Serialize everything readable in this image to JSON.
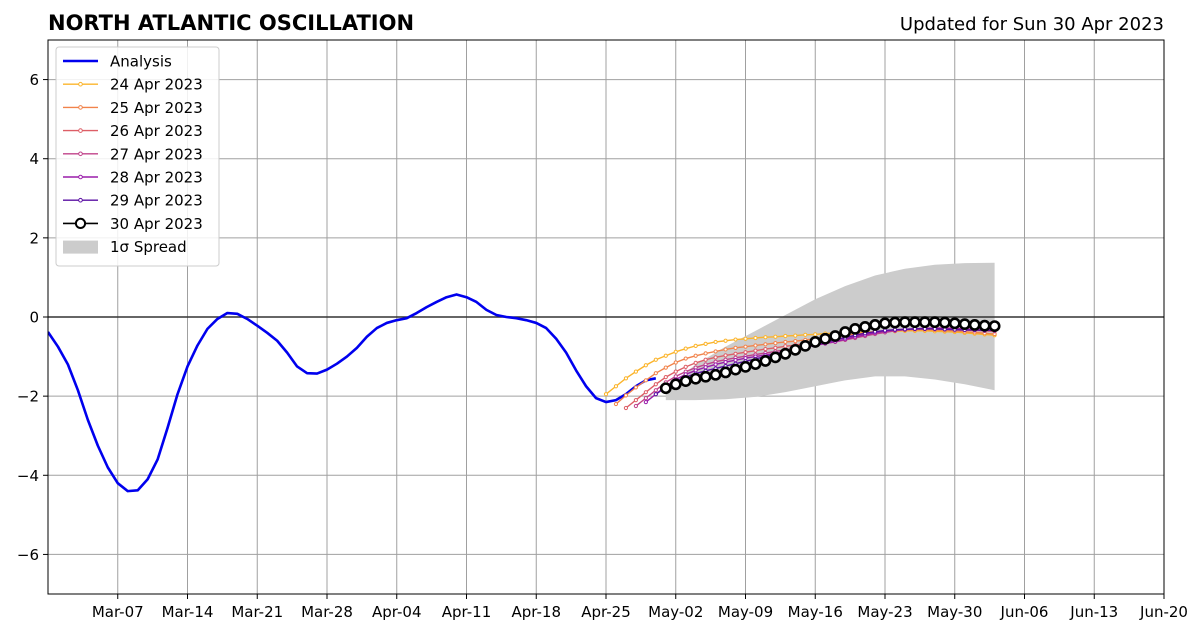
{
  "chart_data": {
    "type": "line",
    "title": "NORTH ATLANTIC OSCILLATION",
    "subtitle": "Updated for Sun 30 Apr 2023",
    "xlabel": "",
    "ylabel": "",
    "xlim": [
      "2023-02-28",
      "2023-06-20"
    ],
    "ylim": [
      -7,
      7
    ],
    "yticks": [
      -6,
      -4,
      -2,
      0,
      2,
      4,
      6
    ],
    "ytick_labels": [
      "−6",
      "−4",
      "−2",
      "0",
      "2",
      "4",
      "6"
    ],
    "xticks": [
      "2023-03-07",
      "2023-03-14",
      "2023-03-21",
      "2023-03-28",
      "2023-04-04",
      "2023-04-11",
      "2023-04-18",
      "2023-04-25",
      "2023-05-02",
      "2023-05-09",
      "2023-05-16",
      "2023-05-23",
      "2023-05-30",
      "2023-06-06",
      "2023-06-13",
      "2023-06-20"
    ],
    "xtick_labels": [
      "Mar-07",
      "Mar-14",
      "Mar-21",
      "Mar-28",
      "Apr-04",
      "Apr-11",
      "Apr-18",
      "Apr-25",
      "May-02",
      "May-09",
      "May-16",
      "May-23",
      "May-30",
      "Jun-06",
      "Jun-13",
      "Jun-20"
    ],
    "grid": true,
    "zero_line": true,
    "legend_position": "top-left",
    "legend": [
      {
        "label": "Analysis",
        "key": "analysis"
      },
      {
        "label": "24 Apr 2023",
        "key": "f0424"
      },
      {
        "label": "25 Apr 2023",
        "key": "f0425"
      },
      {
        "label": "26 Apr 2023",
        "key": "f0426"
      },
      {
        "label": "27 Apr 2023",
        "key": "f0427"
      },
      {
        "label": "28 Apr 2023",
        "key": "f0428"
      },
      {
        "label": "29 Apr 2023",
        "key": "f0429"
      },
      {
        "label": "30 Apr 2023",
        "key": "f0430"
      },
      {
        "label": "1σ Spread",
        "key": "spread"
      }
    ],
    "analysis": {
      "name": "Analysis",
      "color": "#0000ee",
      "x": [
        "2023-02-28",
        "2023-03-01",
        "2023-03-02",
        "2023-03-03",
        "2023-03-04",
        "2023-03-05",
        "2023-03-06",
        "2023-03-07",
        "2023-03-08",
        "2023-03-09",
        "2023-03-10",
        "2023-03-11",
        "2023-03-12",
        "2023-03-13",
        "2023-03-14",
        "2023-03-15",
        "2023-03-16",
        "2023-03-17",
        "2023-03-18",
        "2023-03-19",
        "2023-03-20",
        "2023-03-21",
        "2023-03-22",
        "2023-03-23",
        "2023-03-24",
        "2023-03-25",
        "2023-03-26",
        "2023-03-27",
        "2023-03-28",
        "2023-03-29",
        "2023-03-30",
        "2023-03-31",
        "2023-04-01",
        "2023-04-02",
        "2023-04-03",
        "2023-04-04",
        "2023-04-05",
        "2023-04-06",
        "2023-04-07",
        "2023-04-08",
        "2023-04-09",
        "2023-04-10",
        "2023-04-11",
        "2023-04-12",
        "2023-04-13",
        "2023-04-14",
        "2023-04-15",
        "2023-04-16",
        "2023-04-17",
        "2023-04-18",
        "2023-04-19",
        "2023-04-20",
        "2023-04-21",
        "2023-04-22",
        "2023-04-23",
        "2023-04-24",
        "2023-04-25",
        "2023-04-26",
        "2023-04-27",
        "2023-04-28",
        "2023-04-29",
        "2023-04-30"
      ],
      "y": [
        -0.38,
        -0.75,
        -1.2,
        -1.85,
        -2.6,
        -3.25,
        -3.8,
        -4.2,
        -4.4,
        -4.38,
        -4.1,
        -3.6,
        -2.8,
        -1.95,
        -1.25,
        -0.72,
        -0.3,
        -0.05,
        0.1,
        0.08,
        -0.05,
        -0.22,
        -0.4,
        -0.6,
        -0.9,
        -1.25,
        -1.42,
        -1.43,
        -1.33,
        -1.18,
        -1.0,
        -0.78,
        -0.5,
        -0.28,
        -0.15,
        -0.08,
        -0.03,
        0.1,
        0.25,
        0.38,
        0.5,
        0.57,
        0.5,
        0.38,
        0.18,
        0.05,
        0.0,
        -0.03,
        -0.08,
        -0.15,
        -0.28,
        -0.55,
        -0.9,
        -1.35,
        -1.75,
        -2.05,
        -2.15,
        -2.1,
        -1.95,
        -1.75,
        -1.6,
        -1.55
      ]
    },
    "forecasts": [
      {
        "name": "24 Apr 2023",
        "color": "#fbb42b",
        "start": "2023-04-25",
        "y": [
          -1.95,
          -1.75,
          -1.55,
          -1.38,
          -1.22,
          -1.08,
          -0.98,
          -0.88,
          -0.8,
          -0.73,
          -0.68,
          -0.63,
          -0.6,
          -0.57,
          -0.55,
          -0.53,
          -0.51,
          -0.5,
          -0.48,
          -0.47,
          -0.45,
          -0.44,
          -0.42,
          -0.41,
          -0.4,
          -0.39,
          -0.38,
          -0.37,
          -0.36,
          -0.36,
          -0.35,
          -0.35,
          -0.35,
          -0.36,
          -0.37,
          -0.38,
          -0.4,
          -0.42,
          -0.44,
          -0.46
        ]
      },
      {
        "name": "25 Apr 2023",
        "color": "#f1834b",
        "start": "2023-04-26",
        "y": [
          -2.2,
          -1.98,
          -1.78,
          -1.6,
          -1.42,
          -1.28,
          -1.15,
          -1.05,
          -0.98,
          -0.92,
          -0.87,
          -0.82,
          -0.78,
          -0.75,
          -0.72,
          -0.69,
          -0.66,
          -0.63,
          -0.61,
          -0.58,
          -0.55,
          -0.52,
          -0.49,
          -0.46,
          -0.43,
          -0.4,
          -0.38,
          -0.36,
          -0.34,
          -0.33,
          -0.32,
          -0.32,
          -0.33,
          -0.34,
          -0.35,
          -0.37,
          -0.39,
          -0.41,
          -0.43
        ]
      },
      {
        "name": "26 Apr 2023",
        "color": "#dd5e66",
        "start": "2023-04-27",
        "y": [
          -2.3,
          -2.1,
          -1.9,
          -1.7,
          -1.52,
          -1.38,
          -1.26,
          -1.16,
          -1.08,
          -1.02,
          -0.97,
          -0.93,
          -0.89,
          -0.85,
          -0.81,
          -0.78,
          -0.74,
          -0.71,
          -0.67,
          -0.64,
          -0.6,
          -0.56,
          -0.52,
          -0.48,
          -0.44,
          -0.4,
          -0.37,
          -0.34,
          -0.32,
          -0.31,
          -0.3,
          -0.3,
          -0.31,
          -0.32,
          -0.33,
          -0.34,
          -0.35,
          -0.36
        ]
      },
      {
        "name": "27 Apr 2023",
        "color": "#c0428a",
        "start": "2023-04-28",
        "y": [
          -2.25,
          -2.05,
          -1.85,
          -1.65,
          -1.5,
          -1.38,
          -1.28,
          -1.2,
          -1.13,
          -1.08,
          -1.03,
          -0.99,
          -0.95,
          -0.91,
          -0.87,
          -0.83,
          -0.79,
          -0.75,
          -0.71,
          -0.67,
          -0.63,
          -0.58,
          -0.53,
          -0.48,
          -0.43,
          -0.39,
          -0.35,
          -0.32,
          -0.3,
          -0.29,
          -0.28,
          -0.28,
          -0.29,
          -0.3,
          -0.31,
          -0.32,
          -0.33
        ]
      },
      {
        "name": "28 Apr 2023",
        "color": "#9a1daa",
        "start": "2023-04-29",
        "y": [
          -2.15,
          -1.95,
          -1.75,
          -1.58,
          -1.45,
          -1.35,
          -1.27,
          -1.2,
          -1.14,
          -1.09,
          -1.04,
          -1.0,
          -0.96,
          -0.92,
          -0.87,
          -0.82,
          -0.77,
          -0.72,
          -0.67,
          -0.62,
          -0.56,
          -0.5,
          -0.45,
          -0.4,
          -0.36,
          -0.33,
          -0.31,
          -0.3,
          -0.29,
          -0.29,
          -0.29,
          -0.3,
          -0.31,
          -0.32,
          -0.33,
          -0.33
        ]
      },
      {
        "name": "29 Apr 2023",
        "color": "#5a0fa3",
        "start": "2023-04-30",
        "y": [
          -1.95,
          -1.78,
          -1.63,
          -1.52,
          -1.43,
          -1.36,
          -1.3,
          -1.24,
          -1.18,
          -1.12,
          -1.06,
          -1.0,
          -0.94,
          -0.88,
          -0.82,
          -0.76,
          -0.7,
          -0.64,
          -0.58,
          -0.52,
          -0.46,
          -0.41,
          -0.37,
          -0.34,
          -0.32,
          -0.31,
          -0.3,
          -0.3,
          -0.3,
          -0.31,
          -0.32,
          -0.33,
          -0.33,
          -0.34,
          -0.34
        ]
      },
      {
        "name": "30 Apr 2023",
        "color": "#000000",
        "marker": "open-circle",
        "start": "2023-05-01",
        "y": [
          -1.8,
          -1.7,
          -1.62,
          -1.56,
          -1.51,
          -1.46,
          -1.4,
          -1.33,
          -1.26,
          -1.19,
          -1.11,
          -1.02,
          -0.93,
          -0.83,
          -0.73,
          -0.63,
          -0.55,
          -0.48,
          -0.38,
          -0.3,
          -0.25,
          -0.2,
          -0.16,
          -0.14,
          -0.13,
          -0.13,
          -0.13,
          -0.13,
          -0.14,
          -0.16,
          -0.18,
          -0.2,
          -0.22,
          -0.23
        ]
      }
    ],
    "spread": {
      "name": "1σ Spread",
      "color": "#cccccc",
      "x": [
        "2023-05-01",
        "2023-05-04",
        "2023-05-07",
        "2023-05-10",
        "2023-05-13",
        "2023-05-16",
        "2023-05-19",
        "2023-05-22",
        "2023-05-25",
        "2023-05-28",
        "2023-05-31",
        "2023-06-03"
      ],
      "upper": [
        -1.8,
        -1.2,
        -0.75,
        -0.35,
        0.05,
        0.45,
        0.78,
        1.05,
        1.22,
        1.32,
        1.36,
        1.37
      ],
      "lower": [
        -2.1,
        -2.1,
        -2.08,
        -2.02,
        -1.9,
        -1.75,
        -1.6,
        -1.5,
        -1.5,
        -1.58,
        -1.7,
        -1.85
      ]
    }
  }
}
